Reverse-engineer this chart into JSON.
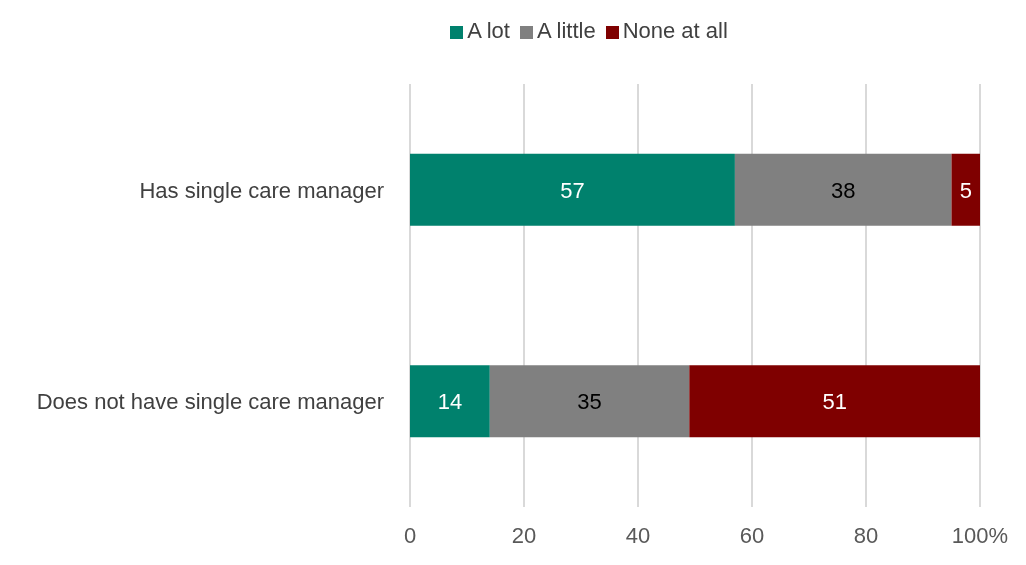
{
  "chart_data": {
    "type": "bar",
    "orientation": "horizontal",
    "stacked": true,
    "categories": [
      "Has single care manager",
      "Does not have single care manager"
    ],
    "series": [
      {
        "name": "A lot",
        "color": "#00816d",
        "values": [
          57,
          14
        ]
      },
      {
        "name": "A little",
        "color": "#808080",
        "values": [
          38,
          35
        ]
      },
      {
        "name": "None at all",
        "color": "#7f0000",
        "values": [
          5,
          51
        ]
      }
    ],
    "xlim": [
      0,
      100
    ],
    "xticks": [
      0,
      20,
      40,
      60,
      80,
      {
        "value": 100,
        "label": "100%"
      }
    ],
    "grid": "x",
    "legend": "top",
    "data_labels": true
  }
}
